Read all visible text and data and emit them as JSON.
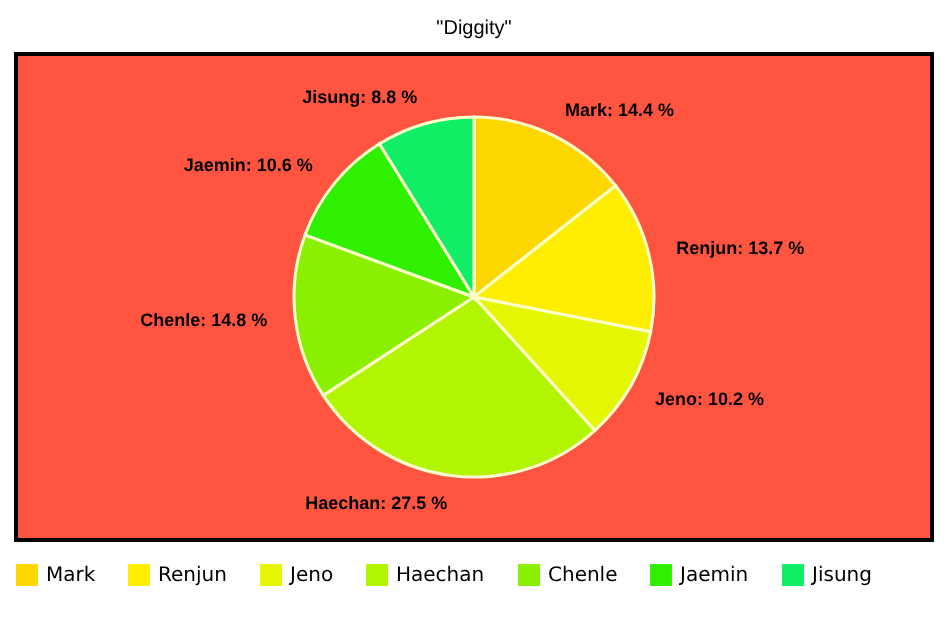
{
  "chart_data": {
    "type": "pie",
    "title": "\"Diggity\"",
    "categories": [
      "Mark",
      "Renjun",
      "Jeno",
      "Haechan",
      "Chenle",
      "Jaemin",
      "Jisung"
    ],
    "values": [
      14.4,
      13.7,
      10.2,
      27.5,
      14.8,
      10.6,
      8.8
    ],
    "value_labels": [
      "Mark: 14.4 %",
      "Renjun: 13.7 %",
      "Jeno: 10.2 %",
      "Haechan: 27.5 %",
      "Chenle: 14.8 %",
      "Jaemin: 10.6 %",
      "Jisung: 8.8 %"
    ],
    "colors": [
      "#ffd700",
      "#ffee00",
      "#e5f700",
      "#b2f500",
      "#8aef00",
      "#2ef000",
      "#10ee66"
    ],
    "legend": "bottom"
  }
}
